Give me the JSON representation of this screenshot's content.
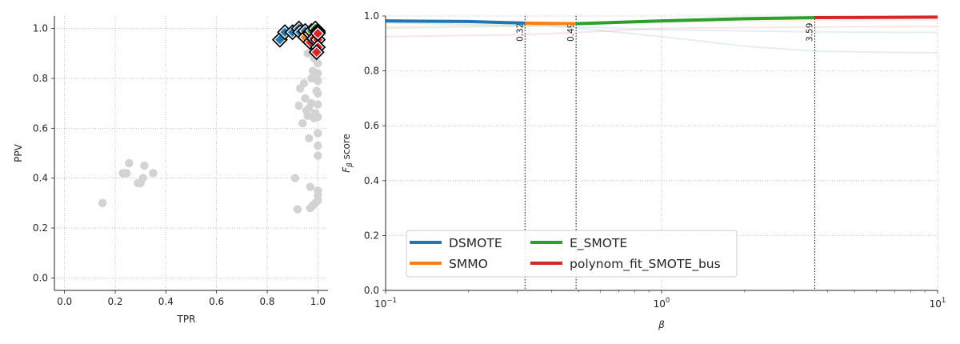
{
  "chart_data": [
    {
      "type": "scatter",
      "xlabel": "TPR",
      "ylabel": "PPV",
      "xlim": [
        -0.04,
        1.04
      ],
      "ylim": [
        -0.05,
        1.05
      ],
      "xticks": [
        "0.0",
        "0.2",
        "0.4",
        "0.6",
        "0.8",
        "1.0"
      ],
      "yticks": [
        "0.0",
        "0.2",
        "0.4",
        "0.6",
        "0.8",
        "1.0"
      ],
      "grid": true,
      "background_points": [
        [
          0.15,
          0.3
        ],
        [
          0.23,
          0.42
        ],
        [
          0.245,
          0.42
        ],
        [
          0.255,
          0.46
        ],
        [
          0.29,
          0.38
        ],
        [
          0.3,
          0.38
        ],
        [
          0.31,
          0.4
        ],
        [
          0.315,
          0.45
        ],
        [
          0.35,
          0.42
        ],
        [
          0.91,
          0.4
        ],
        [
          0.92,
          0.275
        ],
        [
          0.925,
          0.69
        ],
        [
          0.93,
          0.76
        ],
        [
          0.94,
          0.62
        ],
        [
          0.945,
          0.78
        ],
        [
          0.95,
          0.72
        ],
        [
          0.955,
          0.67
        ],
        [
          0.96,
          0.65
        ],
        [
          0.965,
          0.56
        ],
        [
          0.965,
          0.68
        ],
        [
          0.97,
          0.365
        ],
        [
          0.97,
          0.28
        ],
        [
          0.975,
          0.8
        ],
        [
          0.975,
          0.7
        ],
        [
          0.98,
          0.83
        ],
        [
          0.98,
          0.29
        ],
        [
          0.985,
          0.88
        ],
        [
          0.985,
          0.64
        ],
        [
          0.99,
          0.3
        ],
        [
          0.99,
          0.66
        ],
        [
          0.995,
          0.91
        ],
        [
          0.995,
          0.75
        ],
        [
          1.0,
          0.86
        ],
        [
          1.0,
          0.82
        ],
        [
          1.0,
          0.79
        ],
        [
          1.0,
          0.74
        ],
        [
          1.0,
          0.695
        ],
        [
          1.0,
          0.645
        ],
        [
          1.0,
          0.58
        ],
        [
          1.0,
          0.53
        ],
        [
          1.0,
          0.49
        ],
        [
          1.0,
          0.35
        ],
        [
          1.0,
          0.33
        ],
        [
          1.0,
          0.31
        ],
        [
          0.98,
          0.93
        ],
        [
          0.96,
          0.9
        ]
      ],
      "series": [
        {
          "name": "DSMOTE",
          "color": "#1f77b4",
          "points": [
            [
              0.85,
              0.955
            ],
            [
              0.87,
              0.985
            ],
            [
              0.9,
              0.985
            ],
            [
              0.925,
              1.0
            ],
            [
              0.93,
              0.985
            ],
            [
              0.95,
              0.99
            ]
          ]
        },
        {
          "name": "SMMO",
          "color": "#ff7f0e",
          "points": [
            [
              0.95,
              0.965
            ],
            [
              0.97,
              0.98
            ],
            [
              0.985,
              0.985
            ]
          ]
        },
        {
          "name": "E_SMOTE",
          "color": "#2ca02c",
          "points": [
            [
              0.975,
              0.99
            ],
            [
              0.99,
              1.0
            ],
            [
              1.0,
              0.99
            ]
          ]
        },
        {
          "name": "polynom_fit_SMOTE_bus",
          "color": "#d62728",
          "points": [
            [
              0.97,
              0.945
            ],
            [
              0.985,
              0.96
            ],
            [
              1.0,
              0.955
            ],
            [
              1.0,
              0.925
            ],
            [
              1.0,
              0.985
            ],
            [
              1.0,
              0.98
            ],
            [
              0.995,
              0.905
            ]
          ]
        }
      ]
    },
    {
      "type": "line",
      "xscale": "log",
      "xlabel": "β",
      "ylabel_main": "F",
      "ylabel_sub": "β",
      "ylabel_rest": " score",
      "xlim": [
        0.1,
        10
      ],
      "ylim": [
        0.0,
        1.0
      ],
      "xtick_base": "10",
      "xticks": [
        {
          "value": 0.1,
          "exp": "−1"
        },
        {
          "value": 1,
          "exp": "0"
        },
        {
          "value": 10,
          "exp": "1"
        }
      ],
      "yticks": [
        "0.0",
        "0.2",
        "0.4",
        "0.6",
        "0.8",
        "1.0"
      ],
      "grid": true,
      "thresholds": [
        {
          "value": 0.32,
          "label": "0.32"
        },
        {
          "value": 0.49,
          "label": "0.49"
        },
        {
          "value": 3.59,
          "label": "3.59"
        }
      ],
      "background_curves": [
        {
          "color": "#1f77b4",
          "x": [
            0.1,
            0.2,
            0.32,
            0.5,
            1,
            2,
            3.59,
            6,
            10
          ],
          "y": [
            0.985,
            0.982,
            0.975,
            0.955,
            0.925,
            0.89,
            0.872,
            0.868,
            0.866
          ]
        },
        {
          "color": "#ff7f0e",
          "x": [
            0.1,
            0.32,
            0.49,
            1,
            3.59,
            10
          ],
          "y": [
            0.96,
            0.968,
            0.972,
            0.978,
            0.983,
            0.985
          ]
        },
        {
          "color": "#2ca02c",
          "x": [
            0.1,
            0.32,
            0.49,
            1,
            3.59,
            10
          ],
          "y": [
            0.955,
            0.963,
            0.972,
            0.985,
            0.993,
            0.996
          ]
        },
        {
          "color": "#d62728",
          "x": [
            0.1,
            0.32,
            0.49,
            1,
            3.59,
            10
          ],
          "y": [
            0.925,
            0.932,
            0.94,
            0.955,
            0.96,
            0.962
          ]
        },
        {
          "color": "#1f77b4",
          "x": [
            0.1,
            0.5,
            1,
            3.59,
            10
          ],
          "y": [
            0.975,
            0.96,
            0.95,
            0.942,
            0.94
          ]
        }
      ],
      "series": [
        {
          "name": "DSMOTE",
          "color": "#1f77b4",
          "x": [
            0.1,
            0.2,
            0.32
          ],
          "y": [
            0.982,
            0.98,
            0.974
          ]
        },
        {
          "name": "SMMO",
          "color": "#ff7f0e",
          "x": [
            0.32,
            0.49
          ],
          "y": [
            0.974,
            0.972
          ]
        },
        {
          "name": "E_SMOTE",
          "color": "#2ca02c",
          "x": [
            0.49,
            1,
            2,
            3.59
          ],
          "y": [
            0.972,
            0.982,
            0.99,
            0.994
          ]
        },
        {
          "name": "polynom_fit_SMOTE_bus",
          "color": "#d62728",
          "x": [
            3.59,
            6,
            10
          ],
          "y": [
            0.994,
            0.995,
            0.996
          ]
        }
      ],
      "legend": {
        "placement": "lower-left",
        "items": [
          "DSMOTE",
          "SMMO",
          "E_SMOTE",
          "polynom_fit_SMOTE_bus"
        ]
      }
    }
  ]
}
